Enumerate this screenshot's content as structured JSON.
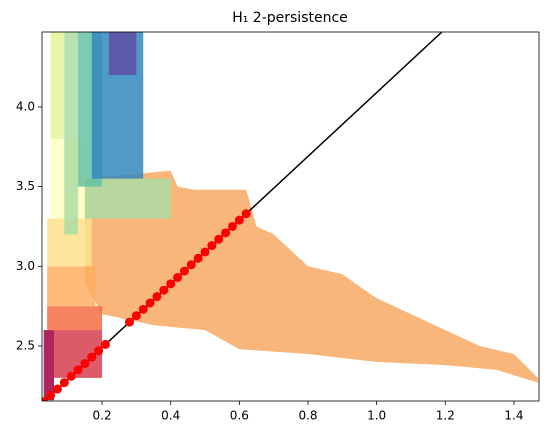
{
  "chart_data": {
    "type": "persistence",
    "title": "H₁ 2-persistence",
    "xlim": [
      0.025,
      1.473
    ],
    "ylim": [
      2.155,
      4.47
    ],
    "xticks": [
      0.2,
      0.4,
      0.6,
      0.8,
      {
        "value": 1,
        "label": "1.0"
      },
      1.2,
      1.4
    ],
    "yticks": [
      2.5,
      {
        "value": 3,
        "label": "3.0"
      },
      3.5,
      {
        "value": 4,
        "label": "4.0"
      }
    ],
    "area": {
      "color": "#f9b67b",
      "x": [
        0.15,
        0.4,
        0.42,
        0.47,
        0.62,
        0.65,
        0.7,
        0.8,
        0.9,
        1.0,
        1.1,
        1.2,
        1.3,
        1.4,
        1.47,
        1.47,
        1.35,
        1.2,
        1.0,
        0.8,
        0.6,
        0.5,
        0.35,
        0.2,
        0.15
      ],
      "y": [
        3.55,
        3.6,
        3.5,
        3.48,
        3.48,
        3.25,
        3.2,
        3.0,
        2.95,
        2.8,
        2.7,
        2.6,
        2.5,
        2.45,
        2.3,
        2.27,
        2.35,
        2.38,
        2.4,
        2.45,
        2.48,
        2.6,
        2.63,
        2.7,
        2.9
      ]
    },
    "regions": [
      {
        "x": [
          0.03,
          0.06
        ],
        "y": [
          2.16,
          2.6
        ],
        "color": "#9e0142"
      },
      {
        "x": [
          0.06,
          0.2
        ],
        "y": [
          2.3,
          2.6
        ],
        "color": "#d53e4f"
      },
      {
        "x": [
          0.04,
          0.2
        ],
        "y": [
          2.6,
          2.75
        ],
        "color": "#f46d43"
      },
      {
        "x": [
          0.04,
          0.18
        ],
        "y": [
          2.75,
          3.0
        ],
        "color": "#fdae61"
      },
      {
        "x": [
          0.04,
          0.17
        ],
        "y": [
          3.0,
          3.3
        ],
        "color": "#fee08b"
      },
      {
        "x": [
          0.05,
          0.15
        ],
        "y": [
          3.3,
          3.8
        ],
        "color": "#ffffbf"
      },
      {
        "x": [
          0.05,
          0.09
        ],
        "y": [
          3.8,
          4.47
        ],
        "color": "#e6f598"
      },
      {
        "x": [
          0.09,
          0.13
        ],
        "y": [
          3.2,
          4.47
        ],
        "color": "#abdda4"
      },
      {
        "x": [
          0.15,
          0.4
        ],
        "y": [
          3.3,
          3.55
        ],
        "color": "#abdda4"
      },
      {
        "x": [
          0.13,
          0.2
        ],
        "y": [
          3.5,
          4.47
        ],
        "color": "#66c2a5"
      },
      {
        "x": [
          0.17,
          0.32
        ],
        "y": [
          3.55,
          4.47
        ],
        "color": "#3288bd"
      },
      {
        "x": [
          0.22,
          0.3
        ],
        "y": [
          4.2,
          4.47
        ],
        "color": "#5e4fa2"
      }
    ],
    "line": {
      "color": "#000000",
      "x": [
        0.025,
        1.19
      ],
      "y": [
        2.14,
        4.47
      ]
    },
    "points": {
      "color": "#ff0000",
      "x": [
        0.03,
        0.05,
        0.07,
        0.09,
        0.11,
        0.13,
        0.15,
        0.17,
        0.19,
        0.21,
        0.28,
        0.3,
        0.32,
        0.34,
        0.36,
        0.38,
        0.4,
        0.42,
        0.44,
        0.46,
        0.48,
        0.5,
        0.52,
        0.54,
        0.56,
        0.58,
        0.6,
        0.62
      ],
      "y": [
        2.15,
        2.19,
        2.23,
        2.27,
        2.31,
        2.35,
        2.39,
        2.43,
        2.47,
        2.51,
        2.65,
        2.69,
        2.73,
        2.77,
        2.81,
        2.85,
        2.89,
        2.93,
        2.97,
        3.01,
        3.05,
        3.09,
        3.13,
        3.17,
        3.21,
        3.25,
        3.29,
        3.33
      ]
    }
  }
}
